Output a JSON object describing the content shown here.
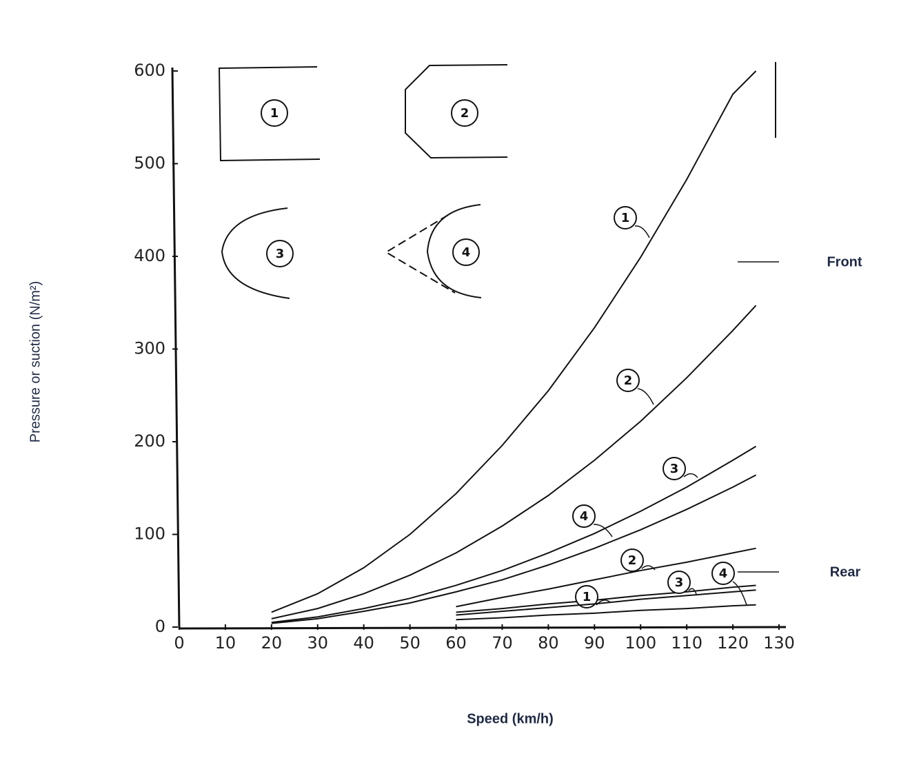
{
  "chart_data": {
    "type": "line",
    "x_label": "Speed (km/h)",
    "y_label": "Pressure or suction (N/m²)",
    "x": [
      20,
      30,
      40,
      50,
      60,
      70,
      80,
      90,
      100,
      110,
      120,
      125
    ],
    "groups": [
      "Front",
      "Rear"
    ],
    "series": [
      {
        "name": "1",
        "group": "Front",
        "color": "#111111",
        "values": [
          16,
          36,
          64,
          100,
          144,
          196,
          255,
          323,
          399,
          483,
          575,
          600
        ]
      },
      {
        "name": "2",
        "group": "Front",
        "color": "#111111",
        "values": [
          9,
          20,
          36,
          56,
          80,
          109,
          142,
          180,
          222,
          269,
          320,
          347
        ]
      },
      {
        "name": "3",
        "group": "Front",
        "color": "#111111",
        "values": [
          5,
          11,
          20,
          31,
          45,
          61,
          80,
          101,
          125,
          151,
          180,
          195
        ]
      },
      {
        "name": "4",
        "group": "Front",
        "color": "#111111",
        "values": [
          4,
          9,
          17,
          26,
          38,
          51,
          67,
          85,
          105,
          127,
          151,
          164
        ]
      },
      {
        "name": "1",
        "group": "Rear",
        "color": "#111111",
        "values": [
          null,
          null,
          null,
          null,
          16,
          20,
          25,
          29,
          34,
          38,
          43,
          45
        ]
      },
      {
        "name": "2",
        "group": "Rear",
        "color": "#111111",
        "values": [
          null,
          null,
          null,
          null,
          22,
          32,
          41,
          51,
          61,
          70,
          80,
          85
        ]
      },
      {
        "name": "3",
        "group": "Rear",
        "color": "#111111",
        "values": [
          null,
          null,
          null,
          null,
          13,
          17,
          21,
          25,
          30,
          34,
          38,
          40
        ]
      },
      {
        "name": "4",
        "group": "Rear",
        "color": "#111111",
        "values": [
          null,
          null,
          null,
          null,
          8,
          10,
          13,
          15,
          18,
          20,
          23,
          24
        ]
      }
    ],
    "shapes": [
      {
        "label": "1"
      },
      {
        "label": "2"
      },
      {
        "label": "3"
      },
      {
        "label": "4"
      }
    ],
    "xlim": [
      0,
      130
    ],
    "xticks": [
      0,
      10,
      20,
      30,
      40,
      50,
      60,
      70,
      80,
      90,
      100,
      110,
      120,
      130
    ],
    "ylim": [
      0,
      600
    ],
    "yticks": [
      0,
      100,
      200,
      300,
      400,
      500,
      600
    ]
  }
}
